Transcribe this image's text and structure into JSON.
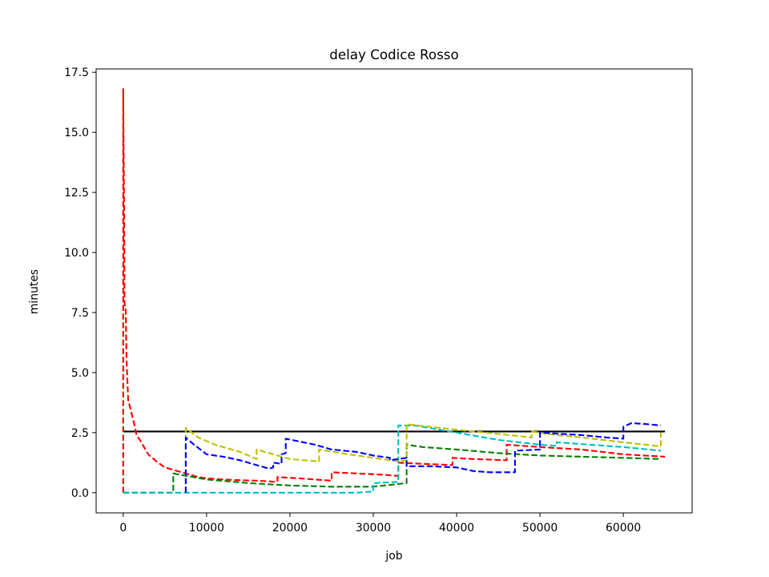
{
  "chart_data": {
    "type": "line",
    "title": "delay Codice Rosso",
    "xlabel": "job",
    "ylabel": "minutes",
    "xlim": [
      -3250,
      68250
    ],
    "ylim": [
      -0.84,
      17.64
    ],
    "x_ticks": [
      0,
      10000,
      20000,
      30000,
      40000,
      50000,
      60000
    ],
    "y_ticks": [
      0.0,
      2.5,
      5.0,
      7.5,
      10.0,
      12.5,
      15.0,
      17.5
    ],
    "x_tick_labels": [
      "0",
      "10000",
      "20000",
      "30000",
      "40000",
      "50000",
      "60000"
    ],
    "y_tick_labels": [
      "0.0",
      "2.5",
      "5.0",
      "7.5",
      "10.0",
      "12.5",
      "15.0",
      "17.5"
    ],
    "grid": false,
    "series": [
      {
        "color": "#000000",
        "style": "solid",
        "x": [
          0,
          65000
        ],
        "y": [
          2.55,
          2.55
        ]
      },
      {
        "color": "#ff0000",
        "style": "dashed",
        "x": [
          0,
          0,
          100,
          150,
          300,
          400,
          600,
          800,
          1000,
          1300,
          1600,
          2000,
          2500,
          3000,
          4000,
          5000,
          6000,
          7000,
          8000,
          9000,
          10000,
          12000,
          14000,
          16000,
          18500,
          18500,
          21000,
          23000,
          25000,
          25000,
          28000,
          31000,
          33000,
          33000,
          36000,
          39500,
          39500,
          42000,
          46000,
          46000,
          50000,
          55000,
          60000,
          65000
        ],
        "y": [
          0.0,
          16.8,
          12.0,
          7.9,
          7.6,
          5.5,
          3.8,
          3.6,
          3.3,
          2.9,
          2.4,
          2.2,
          1.9,
          1.6,
          1.3,
          1.05,
          0.95,
          0.85,
          0.75,
          0.65,
          0.6,
          0.55,
          0.52,
          0.5,
          0.45,
          0.65,
          0.6,
          0.55,
          0.5,
          0.85,
          0.8,
          0.75,
          0.7,
          1.25,
          1.2,
          1.15,
          1.45,
          1.4,
          1.35,
          2.0,
          1.9,
          1.8,
          1.6,
          1.5
        ]
      },
      {
        "color": "#008000",
        "style": "dashed",
        "x": [
          0,
          6000,
          6000,
          10000,
          15000,
          20000,
          25000,
          30000,
          34000,
          34000,
          36000,
          40000,
          45000,
          50000,
          55000,
          60000,
          64500
        ],
        "y": [
          0.0,
          0.0,
          0.8,
          0.55,
          0.4,
          0.3,
          0.25,
          0.25,
          0.4,
          2.0,
          1.9,
          1.8,
          1.65,
          1.55,
          1.5,
          1.45,
          1.4
        ]
      },
      {
        "color": "#00bfbf",
        "style": "dashed",
        "x": [
          0,
          28000,
          30000,
          30000,
          33000,
          33000,
          35000,
          40000,
          45000,
          50000,
          52000,
          52000,
          56000,
          60000,
          64500
        ],
        "y": [
          0.0,
          0.0,
          0.05,
          0.4,
          0.45,
          2.8,
          2.8,
          2.5,
          2.2,
          2.0,
          1.95,
          2.1,
          2.0,
          1.9,
          1.75
        ]
      },
      {
        "color": "#bfbf00",
        "style": "dashed",
        "x": [
          7500,
          7500,
          9000,
          11000,
          14000,
          16000,
          16000,
          20000,
          23500,
          23500,
          27000,
          30000,
          33000,
          34000,
          34000,
          38000,
          42000,
          45000,
          49000,
          49000,
          52000,
          55000,
          60000,
          64000,
          64500,
          64500
        ],
        "y": [
          0.0,
          2.7,
          2.3,
          2.0,
          1.7,
          1.4,
          1.8,
          1.4,
          1.3,
          1.8,
          1.6,
          1.45,
          1.3,
          1.35,
          2.85,
          2.7,
          2.55,
          2.45,
          2.3,
          2.55,
          2.4,
          2.3,
          2.1,
          1.95,
          1.95,
          2.5
        ]
      },
      {
        "color": "#0000ff",
        "style": "dashed",
        "x": [
          7500,
          7500,
          8500,
          10000,
          12000,
          14000,
          16500,
          17500,
          18000,
          18000,
          19000,
          19000,
          19500,
          19500,
          23000,
          25000,
          28000,
          30000,
          32000,
          32000,
          33000,
          34000,
          34000,
          37000,
          40000,
          42000,
          44000,
          47000,
          47000,
          50000,
          50000,
          55000,
          58000,
          60000,
          60000,
          61000,
          63000,
          64500
        ],
        "y": [
          0.0,
          2.3,
          2.0,
          1.6,
          1.5,
          1.35,
          1.1,
          1.0,
          1.05,
          1.25,
          1.2,
          1.6,
          1.65,
          2.25,
          2.0,
          1.8,
          1.7,
          1.55,
          1.45,
          1.35,
          1.4,
          1.45,
          1.1,
          1.1,
          1.05,
          0.9,
          0.85,
          0.85,
          1.75,
          1.8,
          2.5,
          2.4,
          2.3,
          2.25,
          2.75,
          2.9,
          2.85,
          2.8
        ]
      }
    ]
  }
}
